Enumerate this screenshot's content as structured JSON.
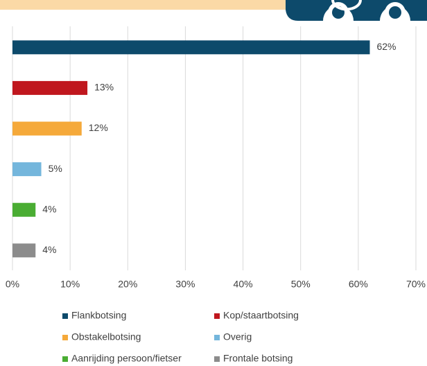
{
  "chart_data": {
    "type": "barh",
    "categories": [
      "Flankbotsing",
      "Kop/staartbotsing",
      "Obstakelbotsing",
      "Overig",
      "Aanrijding persoon/fietser",
      "Frontale botsing"
    ],
    "values": [
      62,
      13,
      12,
      5,
      4,
      4
    ],
    "value_labels": [
      "62%",
      "13%",
      "12%",
      "5%",
      "4%",
      "4%"
    ],
    "colors": [
      "#0d4a6b",
      "#c0171e",
      "#f5a93a",
      "#74b6dc",
      "#4aad33",
      "#8c8c8c"
    ],
    "xlim": [
      0,
      70
    ],
    "xticks": [
      {
        "value": 0,
        "label": "0%"
      },
      {
        "value": 10,
        "label": "10%"
      },
      {
        "value": 20,
        "label": "20%"
      },
      {
        "value": 30,
        "label": "30%"
      },
      {
        "value": 40,
        "label": "40%"
      },
      {
        "value": 50,
        "label": "50%"
      },
      {
        "value": 60,
        "label": "60%"
      },
      {
        "value": 70,
        "label": "70%"
      }
    ],
    "grid": true
  }
}
